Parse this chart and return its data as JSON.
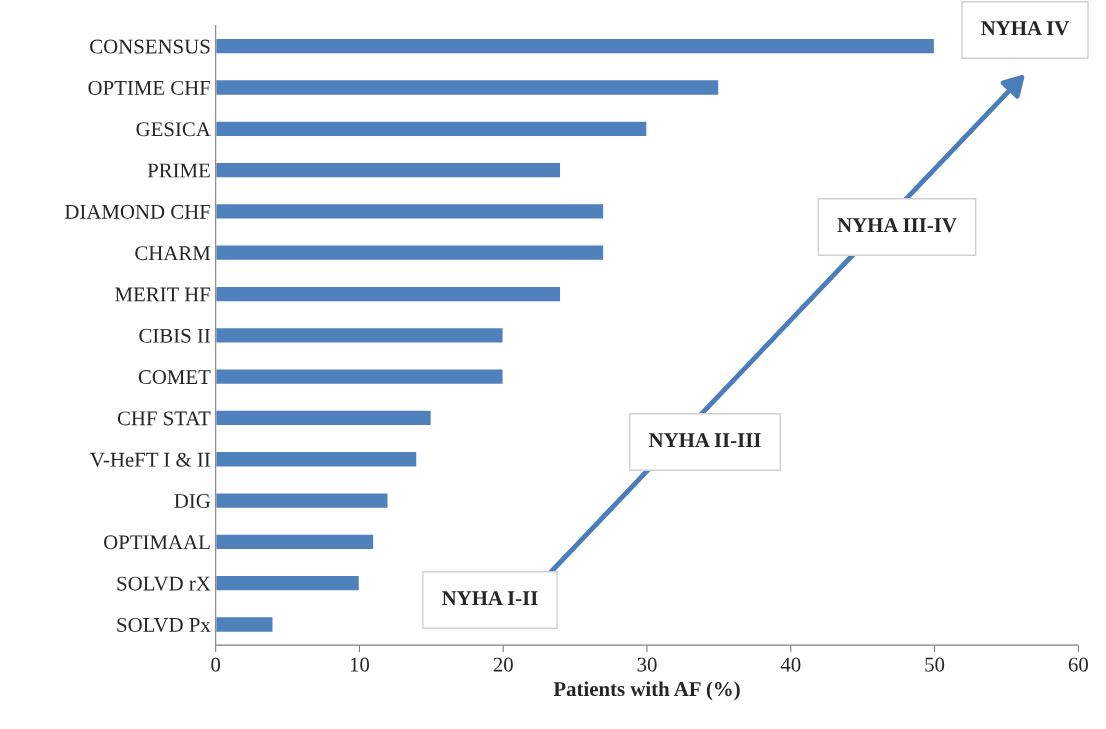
{
  "chart_data": {
    "type": "bar",
    "orientation": "horizontal",
    "categories": [
      "CONSENSUS",
      "OPTIME CHF",
      "GESICA",
      "PRIME",
      "DIAMOND CHF",
      "CHARM",
      "MERIT HF",
      "CIBIS II",
      "COMET",
      "CHF STAT",
      "V-HeFT I & II",
      "DIG",
      "OPTIMAAL",
      "SOLVD rX",
      "SOLVD Px"
    ],
    "values": [
      50,
      35,
      30,
      24,
      27,
      27,
      24,
      20,
      20,
      15,
      14,
      12,
      11,
      10,
      4
    ],
    "color": "#4f81bd",
    "xlabel": "Patients with AF (%)",
    "xlim": [
      0,
      60
    ],
    "xticks": [
      0,
      10,
      20,
      30,
      40,
      50,
      60
    ],
    "grid": false,
    "annotations": [
      "NYHA I-II",
      "NYHA II-III",
      "NYHA III-IV",
      "NYHA IV"
    ]
  }
}
